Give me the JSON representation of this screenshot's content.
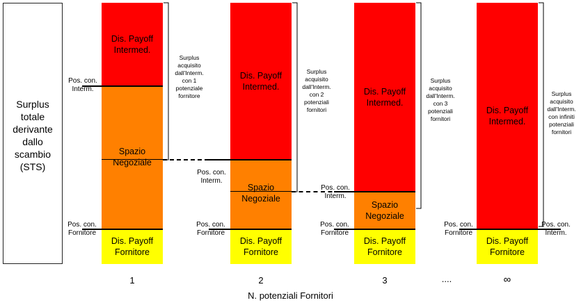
{
  "sts_label": "Surplus\ntotale\nderivante\ndallo\nscambio\n(STS)",
  "bars": [
    {
      "category": "1",
      "segments": [
        {
          "label": "Dis. Payoff\nIntermed.",
          "color": "#ff0000"
        },
        {
          "label": "Spazio\nNegoziale",
          "color": "#ff8000"
        },
        {
          "label": "Dis. Payoff\nFornitore",
          "color": "#ffff00"
        }
      ],
      "pos_interm": "Pos. con.\nInterm.",
      "pos_fornitore": "Pos. con.\nFornitore",
      "surplus": "Surplus\nacquisito\ndall'Interm.\ncon 1\npotenziale\nfornitore"
    },
    {
      "category": "2",
      "segments": [
        {
          "label": "Dis. Payoff\nIntermed.",
          "color": "#ff0000"
        },
        {
          "label": "Spazio\nNegoziale",
          "color": "#ff8000"
        },
        {
          "label": "Dis. Payoff\nFornitore",
          "color": "#ffff00"
        }
      ],
      "pos_interm": "Pos. con.\nInterm.",
      "pos_fornitore": "Pos. con.\nFornitore",
      "surplus": "Surplus\nacquisito\ndall'Interm.\ncon 2\npotenziali\nfornitori"
    },
    {
      "category": "3",
      "segments": [
        {
          "label": "Dis. Payoff\nIntermed.",
          "color": "#ff0000"
        },
        {
          "label": "Spazio\nNegoziale",
          "color": "#ff8000"
        },
        {
          "label": "Dis. Payoff\nFornitore",
          "color": "#ffff00"
        }
      ],
      "pos_interm": "Pos. con.\nInterm.",
      "pos_fornitore": "Pos. con.\nFornitore",
      "surplus": "Surplus\nacquisito\ndall'Interm.\ncon 3\npotenziali\nfornitori"
    },
    {
      "category": "∞",
      "segments": [
        {
          "label": "Dis. Payoff\nIntermed.",
          "color": "#ff0000"
        },
        {
          "label": "Dis. Payoff\nFornitore",
          "color": "#ffff00"
        }
      ],
      "pos_interm": "Pos. con.\nInterm.",
      "pos_fornitore": "Pos. con.\nFornitore",
      "surplus": "Surplus\nacquisito\ndall'Interm.\ncon infiniti\npotenziali\nfornitori"
    }
  ],
  "ellipsis": "....",
  "x_axis_title": "N. potenziali Fornitori"
}
